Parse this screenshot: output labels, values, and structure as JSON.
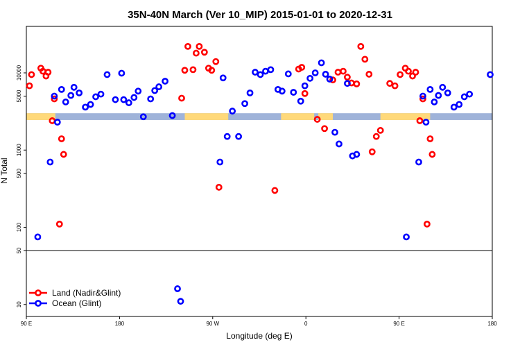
{
  "chart_data": {
    "type": "scatter",
    "title": "35N-40N March (Ver 10_MIP)   2015-01-01 to 2020-12-31",
    "xlabel": "Longitude (deg E)",
    "ylabel": "N Total",
    "x_ticks": [
      {
        "value": 90,
        "label": "90 E"
      },
      {
        "value": 180,
        "label": "180"
      },
      {
        "value": 270,
        "label": "90 W"
      },
      {
        "value": 360,
        "label": "0"
      },
      {
        "value": 450,
        "label": "90 E"
      },
      {
        "value": 540,
        "label": "180"
      }
    ],
    "xlim": [
      90,
      540
    ],
    "y_scale": "log",
    "ylim": [
      7,
      40000
    ],
    "y_ticks": [
      10,
      50,
      100,
      500,
      1000,
      5000,
      10000
    ],
    "divider_y": 50,
    "series": [
      {
        "name": "Land (Nadir&Glint)",
        "color": "#ff0000",
        "points": [
          [
            93,
            6800
          ],
          [
            95,
            9500
          ],
          [
            104,
            11500
          ],
          [
            106,
            10500
          ],
          [
            109,
            9100
          ],
          [
            111,
            10200
          ],
          [
            115,
            2400
          ],
          [
            117,
            4600
          ],
          [
            122,
            110
          ],
          [
            124,
            1400
          ],
          [
            126,
            880
          ],
          [
            240,
            4700
          ],
          [
            243,
            10800
          ],
          [
            246,
            22000
          ],
          [
            251,
            11000
          ],
          [
            254,
            18000
          ],
          [
            257,
            22000
          ],
          [
            262,
            18500
          ],
          [
            266,
            11500
          ],
          [
            269,
            10800
          ],
          [
            273,
            14000
          ],
          [
            276,
            330
          ],
          [
            353,
            11200
          ],
          [
            356,
            11800
          ],
          [
            359,
            5400
          ],
          [
            371,
            2500
          ],
          [
            378,
            1900
          ],
          [
            386,
            8100
          ],
          [
            391,
            10200
          ],
          [
            396,
            10500
          ],
          [
            400,
            8800
          ],
          [
            404,
            7400
          ],
          [
            409,
            7200
          ],
          [
            413,
            22000
          ],
          [
            417,
            15000
          ],
          [
            421,
            9600
          ],
          [
            424,
            950
          ],
          [
            428,
            1500
          ],
          [
            432,
            1800
          ],
          [
            441,
            7300
          ],
          [
            446,
            6800
          ],
          [
            451,
            9500
          ],
          [
            456,
            11500
          ],
          [
            459,
            10500
          ],
          [
            463,
            9100
          ],
          [
            466,
            10200
          ],
          [
            470,
            2400
          ],
          [
            473,
            4600
          ],
          [
            477,
            110
          ],
          [
            480,
            1400
          ],
          [
            482,
            880
          ],
          [
            330,
            300
          ]
        ]
      },
      {
        "name": "Ocean (Glint)",
        "color": "#0000ff",
        "points": [
          [
            101,
            75
          ],
          [
            113,
            700
          ],
          [
            117,
            5000
          ],
          [
            120,
            2300
          ],
          [
            124,
            6100
          ],
          [
            128,
            4200
          ],
          [
            133,
            5100
          ],
          [
            136,
            6500
          ],
          [
            141,
            5500
          ],
          [
            147,
            3600
          ],
          [
            152,
            3900
          ],
          [
            157,
            4900
          ],
          [
            162,
            5300
          ],
          [
            168,
            9500
          ],
          [
            176,
            4500
          ],
          [
            182,
            9900
          ],
          [
            184,
            4500
          ],
          [
            189,
            4100
          ],
          [
            194,
            4800
          ],
          [
            198,
            5800
          ],
          [
            203,
            2700
          ],
          [
            210,
            4600
          ],
          [
            214,
            5900
          ],
          [
            218,
            6600
          ],
          [
            224,
            7800
          ],
          [
            231,
            2800
          ],
          [
            236,
            16
          ],
          [
            239,
            11
          ],
          [
            277,
            700
          ],
          [
            280,
            8600
          ],
          [
            284,
            1500
          ],
          [
            289,
            3200
          ],
          [
            295,
            1500
          ],
          [
            301,
            4000
          ],
          [
            306,
            5500
          ],
          [
            311,
            10200
          ],
          [
            316,
            9500
          ],
          [
            321,
            10500
          ],
          [
            326,
            11000
          ],
          [
            333,
            6100
          ],
          [
            337,
            5800
          ],
          [
            343,
            9700
          ],
          [
            348,
            5600
          ],
          [
            355,
            4300
          ],
          [
            359,
            6800
          ],
          [
            364,
            8500
          ],
          [
            369,
            10000
          ],
          [
            375,
            13500
          ],
          [
            379,
            9600
          ],
          [
            383,
            8300
          ],
          [
            388,
            1700
          ],
          [
            392,
            1200
          ],
          [
            400,
            7300
          ],
          [
            405,
            840
          ],
          [
            409,
            880
          ],
          [
            457,
            75
          ],
          [
            469,
            700
          ],
          [
            473,
            5000
          ],
          [
            476,
            2300
          ],
          [
            480,
            6100
          ],
          [
            484,
            4200
          ],
          [
            488,
            5100
          ],
          [
            492,
            6500
          ],
          [
            497,
            5500
          ],
          [
            503,
            3600
          ],
          [
            508,
            3900
          ],
          [
            513,
            4900
          ],
          [
            518,
            5300
          ],
          [
            538,
            9500
          ]
        ]
      }
    ],
    "background_band": {
      "y_top": 3000,
      "y_bottom": 2450,
      "land_color": "#ffd97a",
      "ocean_color": "#9fb3d9",
      "land_segments": [
        [
          90,
          118
        ],
        [
          243,
          285
        ],
        [
          336,
          368
        ],
        [
          372,
          386
        ],
        [
          432,
          480
        ]
      ]
    },
    "legend": {
      "placement": "bottom-left",
      "items": [
        "Land (Nadir&Glint)",
        "Ocean (Glint)"
      ]
    },
    "grid": false
  }
}
